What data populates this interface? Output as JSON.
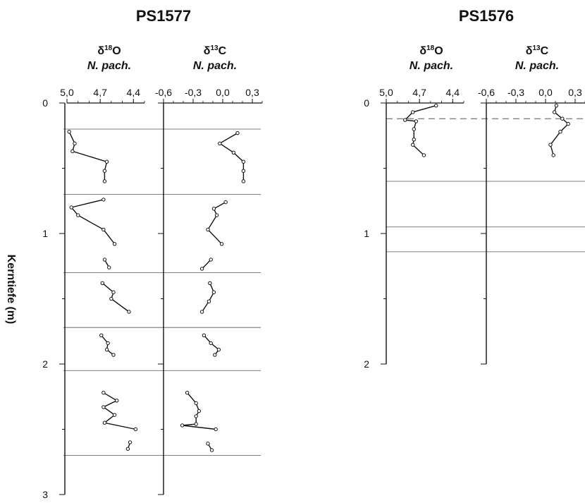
{
  "chart_data": {
    "type": "line",
    "ylabel": "Kerntiefe (m)",
    "cores": [
      {
        "name": "PS1577",
        "depth_ticks": [
          "0",
          "1",
          "2",
          "3"
        ],
        "ylim": [
          0,
          3
        ],
        "horizontal_lines": [
          0.2,
          0.7,
          1.3,
          1.72,
          2.05,
          2.7
        ],
        "panels": [
          {
            "title_prefix": "δ",
            "title_super": "18",
            "title_element": "O",
            "subtitle": "N. pach.",
            "xlim": [
              5.0,
              4.3
            ],
            "x_ticks": [
              5.0,
              4.7,
              4.4
            ],
            "x_tick_labels": [
              "5,0",
              "4,7",
              "4,4"
            ],
            "segments": [
              {
                "points": [
                  [
                    4.98,
                    0.22
                  ],
                  [
                    4.93,
                    0.31
                  ],
                  [
                    4.95,
                    0.37
                  ],
                  [
                    4.64,
                    0.45
                  ],
                  [
                    4.66,
                    0.52
                  ],
                  [
                    4.66,
                    0.6
                  ]
                ]
              },
              {
                "points": [
                  [
                    4.67,
                    0.74
                  ],
                  [
                    4.96,
                    0.8
                  ],
                  [
                    4.9,
                    0.86
                  ],
                  [
                    4.67,
                    0.97
                  ],
                  [
                    4.57,
                    1.08
                  ]
                ]
              },
              {
                "points": [
                  [
                    4.66,
                    1.2
                  ],
                  [
                    4.62,
                    1.26
                  ]
                ]
              },
              {
                "points": [
                  [
                    4.68,
                    1.38
                  ],
                  [
                    4.58,
                    1.45
                  ],
                  [
                    4.6,
                    1.5
                  ],
                  [
                    4.44,
                    1.6
                  ]
                ]
              },
              {
                "points": [
                  [
                    4.69,
                    1.78
                  ],
                  [
                    4.63,
                    1.84
                  ],
                  [
                    4.64,
                    1.89
                  ],
                  [
                    4.58,
                    1.93
                  ]
                ]
              },
              {
                "points": [
                  [
                    4.67,
                    2.22
                  ],
                  [
                    4.55,
                    2.28
                  ],
                  [
                    4.67,
                    2.33
                  ],
                  [
                    4.57,
                    2.39
                  ],
                  [
                    4.66,
                    2.45
                  ],
                  [
                    4.38,
                    2.5
                  ]
                ]
              },
              {
                "points": [
                  [
                    4.43,
                    2.6
                  ],
                  [
                    4.45,
                    2.65
                  ]
                ]
              }
            ]
          },
          {
            "title_prefix": "δ",
            "title_super": "13",
            "title_element": "C",
            "subtitle": "N. pach.",
            "xlim": [
              -0.6,
              0.4
            ],
            "x_ticks": [
              -0.6,
              -0.3,
              0.0,
              0.3
            ],
            "x_tick_labels": [
              "-0,6",
              "-0,3",
              "0,0",
              "0,3"
            ],
            "segments": [
              {
                "points": [
                  [
                    0.15,
                    0.23
                  ],
                  [
                    -0.03,
                    0.31
                  ],
                  [
                    0.11,
                    0.38
                  ],
                  [
                    0.21,
                    0.45
                  ],
                  [
                    0.21,
                    0.52
                  ],
                  [
                    0.21,
                    0.6
                  ]
                ]
              },
              {
                "points": [
                  [
                    0.03,
                    0.76
                  ],
                  [
                    -0.09,
                    0.81
                  ],
                  [
                    -0.06,
                    0.86
                  ],
                  [
                    -0.15,
                    0.97
                  ],
                  [
                    -0.01,
                    1.08
                  ]
                ]
              },
              {
                "points": [
                  [
                    -0.12,
                    1.2
                  ],
                  [
                    -0.21,
                    1.27
                  ]
                ]
              },
              {
                "points": [
                  [
                    -0.13,
                    1.38
                  ],
                  [
                    -0.09,
                    1.45
                  ],
                  [
                    -0.14,
                    1.52
                  ],
                  [
                    -0.21,
                    1.6
                  ]
                ]
              },
              {
                "points": [
                  [
                    -0.19,
                    1.78
                  ],
                  [
                    -0.12,
                    1.84
                  ],
                  [
                    -0.04,
                    1.89
                  ],
                  [
                    -0.08,
                    1.93
                  ]
                ]
              },
              {
                "points": [
                  [
                    -0.36,
                    2.22
                  ],
                  [
                    -0.27,
                    2.3
                  ],
                  [
                    -0.24,
                    2.36
                  ],
                  [
                    -0.27,
                    2.4
                  ],
                  [
                    -0.27,
                    2.46
                  ],
                  [
                    -0.41,
                    2.47
                  ],
                  [
                    -0.07,
                    2.5
                  ]
                ]
              },
              {
                "points": [
                  [
                    -0.15,
                    2.61
                  ],
                  [
                    -0.11,
                    2.66
                  ]
                ]
              }
            ]
          }
        ]
      },
      {
        "name": "PS1576",
        "depth_ticks": [
          "0",
          "1",
          "2"
        ],
        "ylim": [
          0,
          2
        ],
        "horizontal_lines": [
          0.6,
          0.95,
          1.14
        ],
        "dashed_lines": [
          0.12
        ],
        "panels": [
          {
            "title_prefix": "δ",
            "title_super": "18",
            "title_element": "O",
            "subtitle": "N. pach.",
            "xlim": [
              5.0,
              4.3
            ],
            "x_ticks": [
              5.0,
              4.7,
              4.4
            ],
            "x_tick_labels": [
              "5,0",
              "4,7",
              "4,4"
            ],
            "segments": [
              {
                "points": [
                  [
                    4.55,
                    0.02
                  ],
                  [
                    4.76,
                    0.07
                  ],
                  [
                    4.83,
                    0.13
                  ],
                  [
                    4.73,
                    0.14
                  ],
                  [
                    4.75,
                    0.2
                  ],
                  [
                    4.75,
                    0.28
                  ],
                  [
                    4.76,
                    0.32
                  ],
                  [
                    4.66,
                    0.4
                  ]
                ]
              }
            ]
          },
          {
            "title_prefix": "δ",
            "title_super": "13",
            "title_element": "C",
            "subtitle": "N. pach.",
            "xlim": [
              -0.6,
              0.4
            ],
            "x_ticks": [
              -0.6,
              -0.3,
              0.0,
              0.3
            ],
            "x_tick_labels": [
              "-0,6",
              "-0,3",
              "0,0",
              "0,3"
            ],
            "segments": [
              {
                "points": [
                  [
                    0.11,
                    0.02
                  ],
                  [
                    0.09,
                    0.07
                  ],
                  [
                    0.17,
                    0.12
                  ],
                  [
                    0.23,
                    0.16
                  ],
                  [
                    0.15,
                    0.22
                  ],
                  [
                    0.05,
                    0.32
                  ],
                  [
                    0.08,
                    0.4
                  ]
                ]
              }
            ]
          }
        ]
      }
    ]
  }
}
